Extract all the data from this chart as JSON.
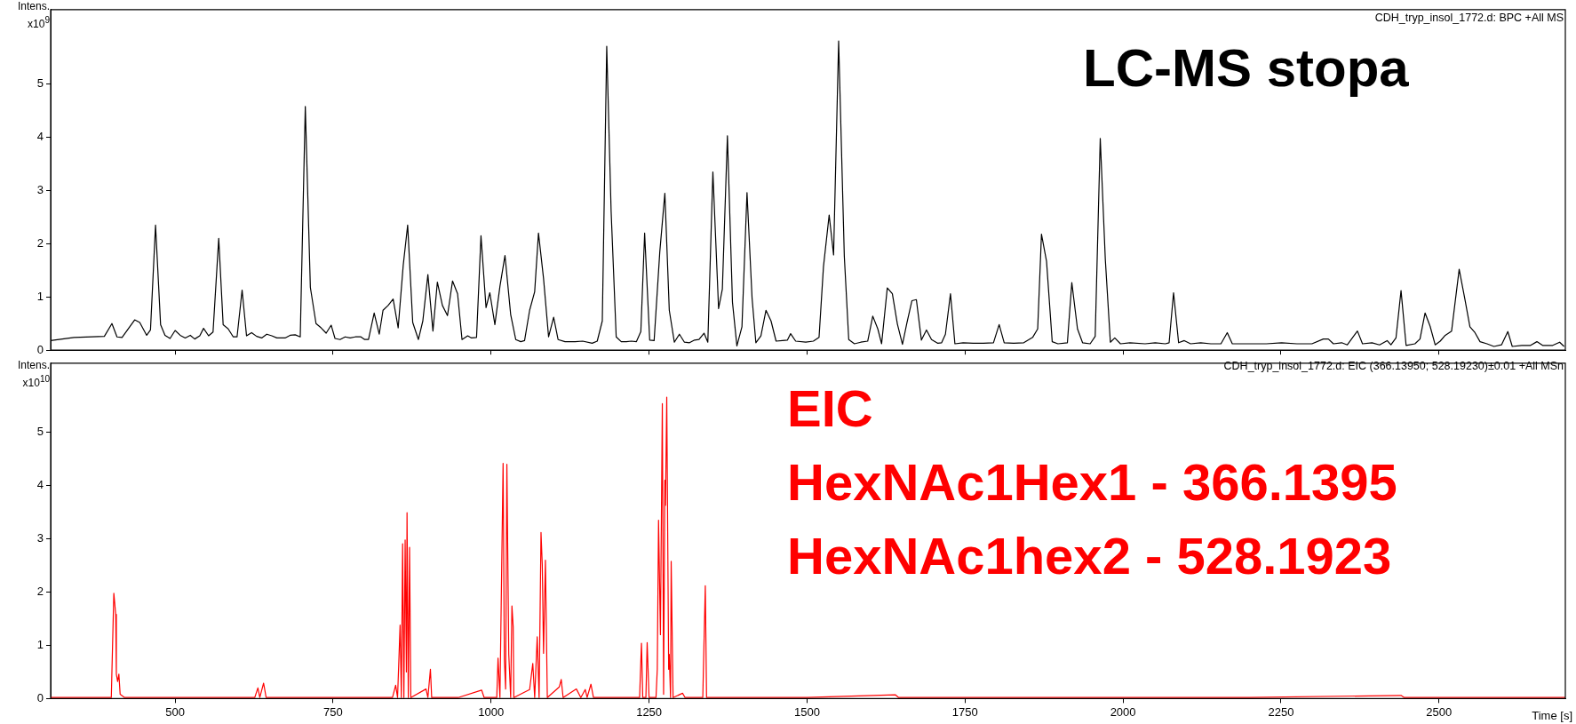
{
  "chart_data": [
    {
      "type": "line",
      "ylabel": "Intens. x10$^{9}$",
      "annotations": [
        "CDH_tryp_insol_1772.d: BPC +All MS",
        "LC-MS stopa"
      ],
      "xlim": [
        303,
        2700
      ],
      "xticks": [
        500,
        750,
        1000,
        1250,
        1500,
        1750,
        2000,
        2250,
        2500
      ],
      "ylim": [
        0,
        6.4
      ],
      "yticks": [
        0,
        1,
        2,
        3,
        4,
        5
      ],
      "tick_labels": "y",
      "legend": false,
      "grid": false,
      "marker": "none",
      "line_style": "solid",
      "x": [
        303,
        340,
        388,
        400,
        408,
        416,
        436,
        444,
        455,
        461,
        469,
        477,
        484,
        492,
        500,
        508,
        516,
        524,
        531,
        539,
        545,
        553,
        560,
        569,
        576,
        584,
        592,
        598,
        606,
        613,
        621,
        629,
        637,
        645,
        653,
        661,
        674,
        682,
        690,
        698,
        706,
        714,
        723,
        731,
        739,
        747,
        753,
        761,
        769,
        777,
        785,
        794,
        800,
        806,
        815,
        823,
        829,
        837,
        845,
        853,
        861,
        868,
        876,
        885,
        892,
        900,
        908,
        915,
        923,
        931,
        939,
        947,
        954,
        963,
        969,
        977,
        984,
        992,
        998,
        1006,
        1014,
        1022,
        1031,
        1039,
        1047,
        1053,
        1061,
        1069,
        1075,
        1083,
        1091,
        1099,
        1106,
        1117,
        1133,
        1145,
        1160,
        1168,
        1176,
        1183,
        1190,
        1198,
        1206,
        1214,
        1222,
        1230,
        1237,
        1243,
        1251,
        1258,
        1267,
        1275,
        1282,
        1290,
        1298,
        1306,
        1314,
        1322,
        1329,
        1337,
        1343,
        1351,
        1360,
        1366,
        1374,
        1382,
        1389,
        1397,
        1405,
        1413,
        1419,
        1427,
        1435,
        1443,
        1451,
        1461,
        1469,
        1474,
        1482,
        1498,
        1510,
        1519,
        1526,
        1535,
        1542,
        1550,
        1559,
        1566,
        1575,
        1585,
        1596,
        1604,
        1612,
        1618,
        1627,
        1635,
        1643,
        1651,
        1658,
        1666,
        1673,
        1681,
        1689,
        1697,
        1707,
        1713,
        1719,
        1727,
        1734,
        1747,
        1763,
        1779,
        1795,
        1804,
        1812,
        1827,
        1843,
        1857,
        1865,
        1871,
        1879,
        1888,
        1897,
        1912,
        1919,
        1928,
        1936,
        1948,
        1956,
        1964,
        1972,
        1980,
        1987,
        1996,
        2011,
        2035,
        2051,
        2067,
        2073,
        2080,
        2088,
        2097,
        2107,
        2123,
        2139,
        2155,
        2165,
        2173,
        2203,
        2227,
        2251,
        2275,
        2299,
        2317,
        2325,
        2333,
        2346,
        2355,
        2371,
        2379,
        2394,
        2406,
        2418,
        2424,
        2432,
        2440,
        2448,
        2462,
        2470,
        2478,
        2486,
        2494,
        2502,
        2510,
        2520,
        2532,
        2541,
        2549,
        2557,
        2565,
        2576,
        2587,
        2599,
        2609,
        2616,
        2631,
        2645,
        2655,
        2664,
        2680,
        2691,
        2698
      ],
      "series": [
        {
          "color": "#000000",
          "values": [
            0.18,
            0.24,
            0.26,
            0.5,
            0.25,
            0.24,
            0.57,
            0.52,
            0.28,
            0.38,
            2.35,
            0.48,
            0.28,
            0.22,
            0.37,
            0.28,
            0.23,
            0.28,
            0.21,
            0.27,
            0.41,
            0.27,
            0.34,
            2.1,
            0.48,
            0.4,
            0.25,
            0.25,
            1.13,
            0.27,
            0.33,
            0.26,
            0.23,
            0.3,
            0.27,
            0.23,
            0.23,
            0.28,
            0.29,
            0.25,
            4.58,
            1.18,
            0.5,
            0.42,
            0.32,
            0.47,
            0.22,
            0.2,
            0.25,
            0.23,
            0.25,
            0.25,
            0.2,
            0.2,
            0.7,
            0.3,
            0.75,
            0.84,
            0.96,
            0.42,
            1.6,
            2.35,
            0.52,
            0.2,
            0.55,
            1.42,
            0.36,
            1.28,
            0.84,
            0.65,
            1.3,
            1.06,
            0.2,
            0.27,
            0.23,
            0.24,
            2.15,
            0.8,
            1.08,
            0.48,
            1.2,
            1.78,
            0.67,
            0.2,
            0.16,
            0.18,
            0.75,
            1.1,
            2.2,
            1.35,
            0.25,
            0.62,
            0.2,
            0.16,
            0.16,
            0.17,
            0.13,
            0.17,
            0.55,
            5.71,
            2.6,
            0.25,
            0.16,
            0.16,
            0.17,
            0.16,
            0.35,
            2.2,
            0.19,
            0.18,
            1.85,
            2.95,
            0.75,
            0.15,
            0.3,
            0.15,
            0.14,
            0.19,
            0.2,
            0.32,
            0.15,
            3.35,
            0.78,
            1.15,
            4.03,
            0.9,
            0.08,
            0.44,
            2.96,
            0.98,
            0.14,
            0.27,
            0.75,
            0.55,
            0.17,
            0.18,
            0.19,
            0.31,
            0.17,
            0.15,
            0.17,
            0.24,
            1.57,
            2.54,
            1.79,
            5.81,
            1.76,
            0.2,
            0.12,
            0.15,
            0.17,
            0.64,
            0.4,
            0.12,
            1.17,
            1.06,
            0.49,
            0.11,
            0.51,
            0.93,
            0.95,
            0.19,
            0.38,
            0.2,
            0.13,
            0.14,
            0.3,
            1.06,
            0.12,
            0.14,
            0.13,
            0.13,
            0.14,
            0.48,
            0.14,
            0.13,
            0.14,
            0.24,
            0.4,
            2.18,
            1.67,
            0.16,
            0.12,
            0.14,
            1.27,
            0.4,
            0.14,
            0.12,
            0.26,
            3.98,
            1.71,
            0.15,
            0.23,
            0.12,
            0.14,
            0.12,
            0.14,
            0.12,
            0.14,
            1.08,
            0.14,
            0.18,
            0.12,
            0.14,
            0.12,
            0.12,
            0.33,
            0.12,
            0.12,
            0.12,
            0.14,
            0.12,
            0.12,
            0.21,
            0.21,
            0.12,
            0.14,
            0.1,
            0.36,
            0.12,
            0.14,
            0.1,
            0.18,
            0.1,
            0.23,
            1.12,
            0.09,
            0.12,
            0.21,
            0.7,
            0.45,
            0.1,
            0.17,
            0.28,
            0.36,
            1.52,
            0.96,
            0.44,
            0.33,
            0.16,
            0.12,
            0.07,
            0.1,
            0.35,
            0.07,
            0.09,
            0.09,
            0.16,
            0.09,
            0.09,
            0.15,
            0.07
          ]
        }
      ]
    },
    {
      "type": "line",
      "ylabel": "Intens. x10$^{10}$",
      "xlabel": "Time [s]",
      "annotations": [
        "CDH_tryp_insol_1772.d: EIC (366.13950; 528.19230)±0.01 +All MSn",
        "EIC",
        "HexNAc1Hex1 - 366.1395",
        "HexNAc1hex2 - 528.1923"
      ],
      "xlim": [
        303,
        2700
      ],
      "xticks": [
        500,
        750,
        1000,
        1250,
        1500,
        1750,
        2000,
        2250,
        2500
      ],
      "ylim": [
        0,
        6.3
      ],
      "yticks": [
        0,
        1,
        2,
        3,
        4,
        5
      ],
      "legend": false,
      "grid": false,
      "marker": "none",
      "line_style": "solid",
      "x": [
        303,
        344,
        384,
        399,
        403,
        406,
        407,
        409,
        411,
        413,
        420,
        465,
        545,
        626,
        631,
        634,
        640,
        644,
        706,
        787,
        844,
        849,
        852,
        856,
        858,
        860,
        862,
        864,
        866,
        867,
        869,
        871,
        873,
        897,
        900,
        904,
        906,
        948,
        985,
        989,
        1009,
        1011,
        1014,
        1016,
        1019,
        1021,
        1023,
        1025,
        1028,
        1031,
        1033,
        1035,
        1036,
        1061,
        1066,
        1069,
        1073,
        1076,
        1079,
        1081,
        1083,
        1086,
        1089,
        1108,
        1111,
        1114,
        1135,
        1142,
        1149,
        1152,
        1158,
        1162,
        1190,
        1235,
        1238,
        1240,
        1245,
        1247,
        1250,
        1261,
        1263,
        1265,
        1268,
        1271,
        1273,
        1275,
        1276,
        1278,
        1281,
        1282,
        1284,
        1285,
        1288,
        1303,
        1307,
        1335,
        1339,
        1341,
        1392,
        1500,
        1640,
        1645,
        1800,
        2000,
        2200,
        2440,
        2445,
        2600,
        2700
      ],
      "series": [
        {
          "color": "#ff0000",
          "values": [
            0.02,
            0.02,
            0.02,
            0.02,
            1.98,
            1.58,
            0.46,
            0.32,
            0.46,
            0.08,
            0.02,
            0.02,
            0.02,
            0.02,
            0.2,
            0.02,
            0.29,
            0.02,
            0.02,
            0.02,
            0.02,
            0.25,
            0.02,
            1.38,
            0.02,
            2.91,
            0.02,
            2.98,
            0.5,
            3.49,
            0.02,
            2.84,
            0.02,
            0.18,
            0.02,
            0.55,
            0.02,
            0.02,
            0.16,
            0.02,
            0.02,
            0.76,
            0.02,
            1.76,
            4.42,
            0.74,
            0.18,
            4.4,
            0.83,
            0.02,
            1.74,
            1.34,
            0.02,
            0.17,
            0.66,
            0.02,
            1.16,
            0.02,
            3.12,
            2.51,
            0.85,
            2.6,
            0.02,
            0.22,
            0.36,
            0.02,
            0.18,
            0.02,
            0.17,
            0.02,
            0.27,
            0.02,
            0.02,
            0.02,
            1.04,
            0.02,
            0.02,
            1.05,
            0.02,
            0.02,
            0.55,
            3.35,
            1.2,
            5.54,
            0.08,
            4.1,
            3.63,
            5.66,
            0.55,
            0.83,
            0.02,
            2.58,
            0.02,
            0.1,
            0.02,
            0.02,
            2.12,
            0.02,
            0.02,
            0.02,
            0.07,
            0.02,
            0.02,
            0.02,
            0.02,
            0.06,
            0.02,
            0.02,
            0.02
          ]
        }
      ]
    }
  ]
}
